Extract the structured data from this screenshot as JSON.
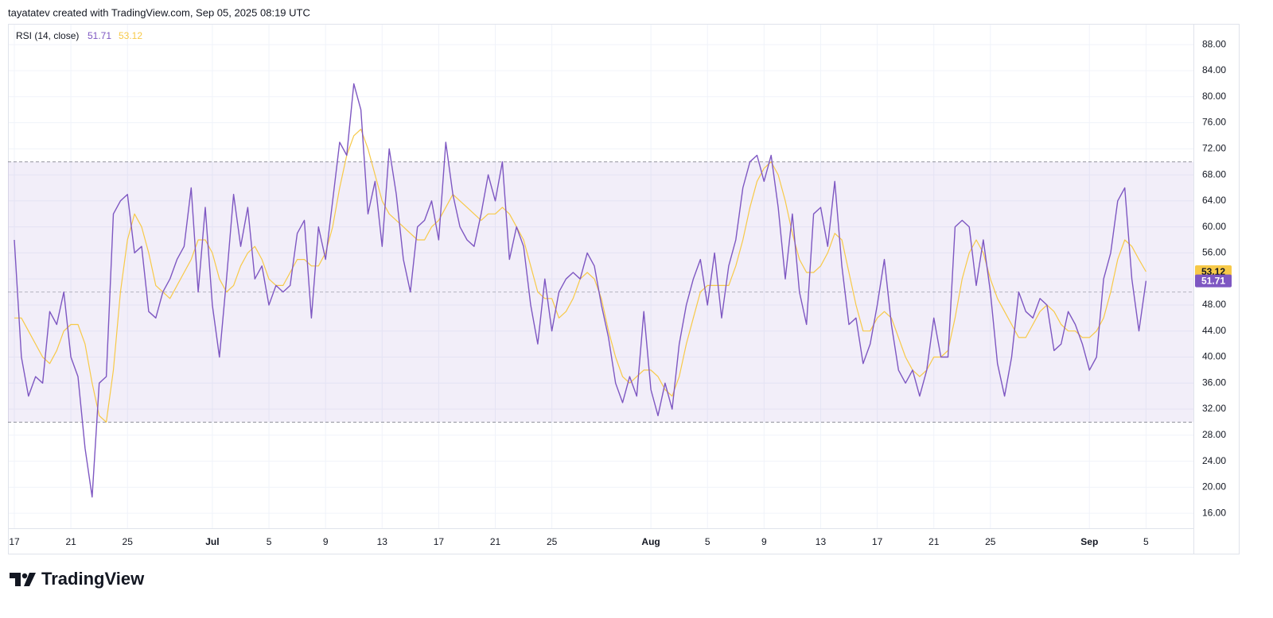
{
  "header": {
    "text": "tayatatev created with TradingView.com, Sep 05, 2025 08:19 UTC"
  },
  "footer": {
    "brand": "TradingView"
  },
  "chart_data": {
    "type": "line",
    "legend_title": "RSI (14, close)",
    "categories": [
      "17",
      null,
      null,
      null,
      null,
      null,
      null,
      null,
      "21",
      null,
      null,
      null,
      null,
      null,
      null,
      null,
      "25",
      null,
      null,
      null,
      null,
      null,
      null,
      null,
      null,
      null,
      null,
      null,
      "Jul",
      null,
      null,
      null,
      null,
      null,
      null,
      null,
      "5",
      null,
      null,
      null,
      null,
      null,
      null,
      null,
      "9",
      null,
      null,
      null,
      null,
      null,
      null,
      null,
      "13",
      null,
      null,
      null,
      null,
      null,
      null,
      null,
      "17",
      null,
      null,
      null,
      null,
      null,
      null,
      null,
      "21",
      null,
      null,
      null,
      null,
      null,
      null,
      null,
      "25",
      null,
      null,
      null,
      null,
      null,
      null,
      null,
      null,
      null,
      null,
      null,
      null,
      null,
      "Aug",
      null,
      null,
      null,
      null,
      null,
      null,
      null,
      "5",
      null,
      null,
      null,
      null,
      null,
      null,
      null,
      "9",
      null,
      null,
      null,
      null,
      null,
      null,
      null,
      "13",
      null,
      null,
      null,
      null,
      null,
      null,
      null,
      "17",
      null,
      null,
      null,
      null,
      null,
      null,
      null,
      "21",
      null,
      null,
      null,
      null,
      null,
      null,
      null,
      "25",
      null,
      null,
      null,
      null,
      null,
      null,
      null,
      null,
      null,
      null,
      null,
      null,
      null,
      "Sep",
      null,
      null,
      null,
      null,
      null,
      null,
      null,
      "5"
    ],
    "series": [
      {
        "color": "#7e57c2",
        "values": [
          58,
          40,
          34,
          37,
          36,
          47,
          45,
          50,
          40,
          37,
          26,
          18.5,
          36,
          37,
          62,
          64,
          65,
          56,
          57,
          47,
          46,
          50,
          52,
          55,
          57,
          66,
          50,
          63,
          48,
          40,
          52,
          65,
          57,
          63,
          52,
          54,
          48,
          51,
          50,
          51,
          59,
          61,
          46,
          60,
          55,
          64,
          73,
          71,
          82,
          78,
          62,
          67,
          57,
          72,
          65,
          55,
          50,
          60,
          61,
          64,
          58,
          73,
          65,
          60,
          58,
          57,
          62,
          68,
          64,
          70,
          55,
          60,
          57,
          48,
          42,
          52,
          44,
          50,
          52,
          53,
          52,
          56,
          54,
          48,
          43,
          36,
          33,
          37,
          34,
          47,
          35,
          31,
          36,
          32,
          42,
          48,
          52,
          55,
          48,
          56,
          46,
          54,
          58,
          66,
          70,
          71,
          67,
          71,
          63,
          52,
          62,
          50,
          45,
          62,
          63,
          57,
          67,
          54,
          45,
          46,
          39,
          42,
          48,
          55,
          45,
          38,
          36,
          38,
          34,
          38,
          46,
          40,
          40,
          60,
          61,
          60,
          51,
          58,
          50,
          39,
          34,
          40,
          50,
          47,
          46,
          49,
          48,
          41,
          42,
          47,
          45,
          42,
          38,
          40,
          52,
          56,
          64,
          66,
          52,
          44,
          51.71
        ]
      },
      {
        "color": "#f7c948",
        "values": [
          46,
          46,
          44,
          42,
          40,
          39,
          41,
          44,
          45,
          45,
          42,
          36,
          31,
          30,
          38,
          50,
          58,
          62,
          60,
          56,
          51,
          50,
          49,
          51,
          53,
          55,
          58,
          58,
          56,
          52,
          50,
          51,
          54,
          56,
          57,
          55,
          52,
          51,
          51,
          53,
          55,
          55,
          54,
          54,
          56,
          60,
          66,
          71,
          74,
          75,
          72,
          68,
          64,
          62,
          61,
          60,
          59,
          58,
          58,
          60,
          61,
          63,
          65,
          64,
          63,
          62,
          61,
          62,
          62,
          63,
          62,
          60,
          58,
          54,
          50,
          49,
          49,
          46,
          47,
          49,
          52,
          53,
          52,
          49,
          44,
          40,
          37,
          36,
          37,
          38,
          38,
          37,
          35,
          34,
          37,
          42,
          46,
          50,
          51,
          51,
          51,
          51,
          54,
          58,
          63,
          67,
          69,
          70,
          68,
          64,
          59,
          55,
          53,
          53,
          54,
          56,
          59,
          58,
          53,
          48,
          44,
          44,
          46,
          47,
          46,
          43,
          40,
          38,
          37,
          38,
          40,
          40,
          41,
          46,
          52,
          56,
          58,
          56,
          52,
          49,
          47,
          45,
          43,
          43,
          45,
          47,
          48,
          47,
          45,
          44,
          44,
          43,
          43,
          44,
          46,
          50,
          55,
          58,
          57,
          55,
          53.12
        ]
      }
    ],
    "bands": [
      30,
      50,
      70
    ],
    "band_fill": "#7e57c2",
    "ylim": [
      13.7,
      91.2
    ],
    "yticks": [
      {
        "value": 16,
        "label": "16.00"
      },
      {
        "value": 20,
        "label": "20.00"
      },
      {
        "value": 24,
        "label": "24.00"
      },
      {
        "value": 28,
        "label": "28.00"
      },
      {
        "value": 32,
        "label": "32.00"
      },
      {
        "value": 36,
        "label": "36.00"
      },
      {
        "value": 40,
        "label": "40.00"
      },
      {
        "value": 44,
        "label": "44.00"
      },
      {
        "value": 48,
        "label": "48.00"
      },
      {
        "value": 52,
        "label": "52.00"
      },
      {
        "value": 56,
        "label": "56.00"
      },
      {
        "value": 60,
        "label": "60.00"
      },
      {
        "value": 64,
        "label": "64.00"
      },
      {
        "value": 68,
        "label": "68.00"
      },
      {
        "value": 72,
        "label": "72.00"
      },
      {
        "value": 76,
        "label": "76.00"
      },
      {
        "value": 80,
        "label": "80.00"
      },
      {
        "value": 84,
        "label": "84.00"
      },
      {
        "value": 88,
        "label": "88.00"
      }
    ],
    "grid": true
  }
}
